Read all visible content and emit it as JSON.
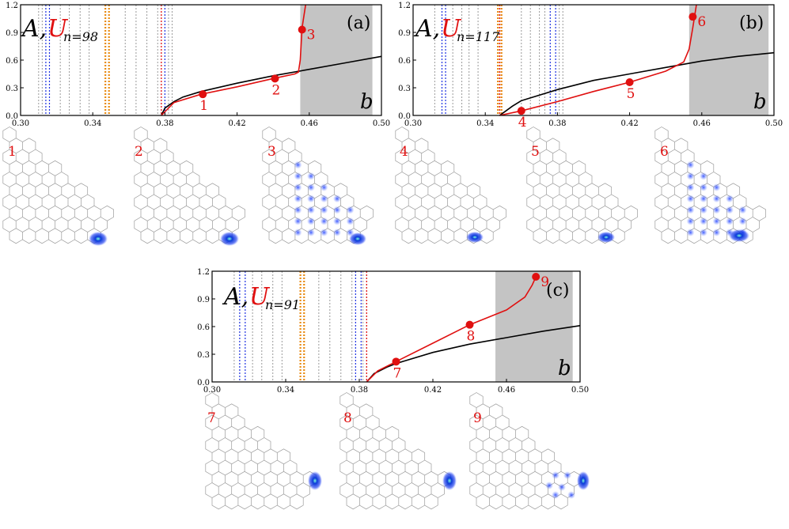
{
  "figure": {
    "panels": [
      {
        "label": "(a)",
        "annotation": {
          "A": "A,",
          "U": "U",
          "sub": "n=98"
        },
        "xvar": "b",
        "x_ticks": [
          "0.30",
          "0.34",
          "0.38",
          "0.42",
          "0.46",
          "0.50"
        ],
        "y_ticks": [
          "0.0",
          "0.3",
          "0.6",
          "0.9",
          "1.2"
        ],
        "point_labels": [
          "1",
          "2",
          "3"
        ],
        "lattice_labels": [
          "1",
          "2",
          "3"
        ]
      },
      {
        "label": "(b)",
        "annotation": {
          "A": "A,",
          "U": "U",
          "sub": "n=117"
        },
        "xvar": "b",
        "x_ticks": [
          "0.30",
          "0.34",
          "0.38",
          "0.42",
          "0.46",
          "0.50"
        ],
        "y_ticks": [
          "0.0",
          "0.3",
          "0.6",
          "0.9",
          "1.2"
        ],
        "point_labels": [
          "4",
          "5",
          "6"
        ],
        "lattice_labels": [
          "4",
          "5",
          "6"
        ]
      },
      {
        "label": "(c)",
        "annotation": {
          "A": "A,",
          "U": "U",
          "sub": "n=91"
        },
        "xvar": "b",
        "x_ticks": [
          "0.30",
          "0.34",
          "0.38",
          "0.42",
          "0.46",
          "0.50"
        ],
        "y_ticks": [
          "0.0",
          "0.3",
          "0.6",
          "0.9",
          "1.2"
        ],
        "point_labels": [
          "7",
          "8",
          "9"
        ],
        "lattice_labels": [
          "7",
          "8",
          "9"
        ]
      }
    ]
  },
  "chart_data": [
    {
      "type": "line",
      "title": "",
      "xlabel": "b",
      "ylabel": "",
      "xlim": [
        0.3,
        0.5
      ],
      "ylim": [
        0.0,
        1.2
      ],
      "shaded_range": [
        0.455,
        0.495
      ],
      "vlines": {
        "gray": [
          0.31,
          0.312,
          0.322,
          0.327,
          0.333,
          0.338,
          0.358,
          0.364,
          0.37,
          0.376,
          0.382,
          0.384
        ],
        "blue": [
          0.314,
          0.316,
          0.38
        ],
        "orange": [
          0.347,
          0.349
        ],
        "red": [
          0.378
        ]
      },
      "series": [
        {
          "name": "A",
          "color": "#000000",
          "x": [
            0.378,
            0.38,
            0.385,
            0.39,
            0.4,
            0.42,
            0.44,
            0.46,
            0.48,
            0.5
          ],
          "y": [
            0.0,
            0.08,
            0.15,
            0.2,
            0.26,
            0.35,
            0.43,
            0.5,
            0.57,
            0.64
          ]
        },
        {
          "name": "U",
          "color": "#e01010",
          "x": [
            0.378,
            0.385,
            0.4,
            0.42,
            0.44,
            0.452,
            0.454,
            0.455,
            0.456,
            0.458
          ],
          "y": [
            0.0,
            0.14,
            0.23,
            0.31,
            0.4,
            0.45,
            0.47,
            0.6,
            0.95,
            1.2
          ]
        }
      ],
      "points": [
        {
          "label": "1",
          "x": 0.401,
          "y": 0.23
        },
        {
          "label": "2",
          "x": 0.441,
          "y": 0.4
        },
        {
          "label": "3",
          "x": 0.456,
          "y": 0.93
        }
      ]
    },
    {
      "type": "line",
      "title": "",
      "xlabel": "b",
      "ylabel": "",
      "xlim": [
        0.3,
        0.5
      ],
      "ylim": [
        0.0,
        1.2
      ],
      "shaded_range": [
        0.453,
        0.497
      ],
      "vlines": {
        "gray": [
          0.312,
          0.322,
          0.327,
          0.331,
          0.336,
          0.36,
          0.365,
          0.37,
          0.373,
          0.381,
          0.383
        ],
        "blue": [
          0.316,
          0.318,
          0.376,
          0.379
        ],
        "orange": [
          0.347,
          0.349
        ],
        "red": [
          0.348
        ]
      },
      "series": [
        {
          "name": "A",
          "color": "#000000",
          "x": [
            0.348,
            0.355,
            0.36,
            0.38,
            0.4,
            0.42,
            0.44,
            0.46,
            0.48,
            0.5
          ],
          "y": [
            0.0,
            0.1,
            0.16,
            0.28,
            0.38,
            0.45,
            0.52,
            0.59,
            0.64,
            0.68
          ]
        },
        {
          "name": "U",
          "color": "#e01010",
          "x": [
            0.348,
            0.36,
            0.38,
            0.4,
            0.42,
            0.44,
            0.45,
            0.453,
            0.455,
            0.457
          ],
          "y": [
            0.0,
            0.05,
            0.15,
            0.26,
            0.36,
            0.48,
            0.58,
            0.72,
            0.95,
            1.2
          ]
        }
      ],
      "points": [
        {
          "label": "4",
          "x": 0.36,
          "y": 0.05
        },
        {
          "label": "5",
          "x": 0.42,
          "y": 0.36
        },
        {
          "label": "6",
          "x": 0.455,
          "y": 1.07
        }
      ]
    },
    {
      "type": "line",
      "title": "",
      "xlabel": "b",
      "ylabel": "",
      "xlim": [
        0.3,
        0.5
      ],
      "ylim": [
        0.0,
        1.2
      ],
      "shaded_range": [
        0.454,
        0.496
      ],
      "vlines": {
        "gray": [
          0.312,
          0.322,
          0.327,
          0.333,
          0.338,
          0.358,
          0.364,
          0.37,
          0.376,
          0.382
        ],
        "blue": [
          0.315,
          0.318,
          0.378,
          0.381
        ],
        "orange": [
          0.348,
          0.35
        ],
        "red": [
          0.384
        ]
      },
      "series": [
        {
          "name": "A",
          "color": "#000000",
          "x": [
            0.384,
            0.388,
            0.395,
            0.4,
            0.42,
            0.44,
            0.46,
            0.48,
            0.5
          ],
          "y": [
            0.0,
            0.09,
            0.16,
            0.2,
            0.32,
            0.41,
            0.48,
            0.55,
            0.61
          ]
        },
        {
          "name": "U",
          "color": "#e01010",
          "x": [
            0.384,
            0.39,
            0.4,
            0.42,
            0.44,
            0.46,
            0.47,
            0.474,
            0.476
          ],
          "y": [
            0.0,
            0.12,
            0.22,
            0.42,
            0.62,
            0.78,
            0.92,
            1.05,
            1.14
          ]
        }
      ],
      "points": [
        {
          "label": "7",
          "x": 0.4,
          "y": 0.22
        },
        {
          "label": "8",
          "x": 0.44,
          "y": 0.62
        },
        {
          "label": "9",
          "x": 0.476,
          "y": 1.14
        }
      ]
    }
  ]
}
